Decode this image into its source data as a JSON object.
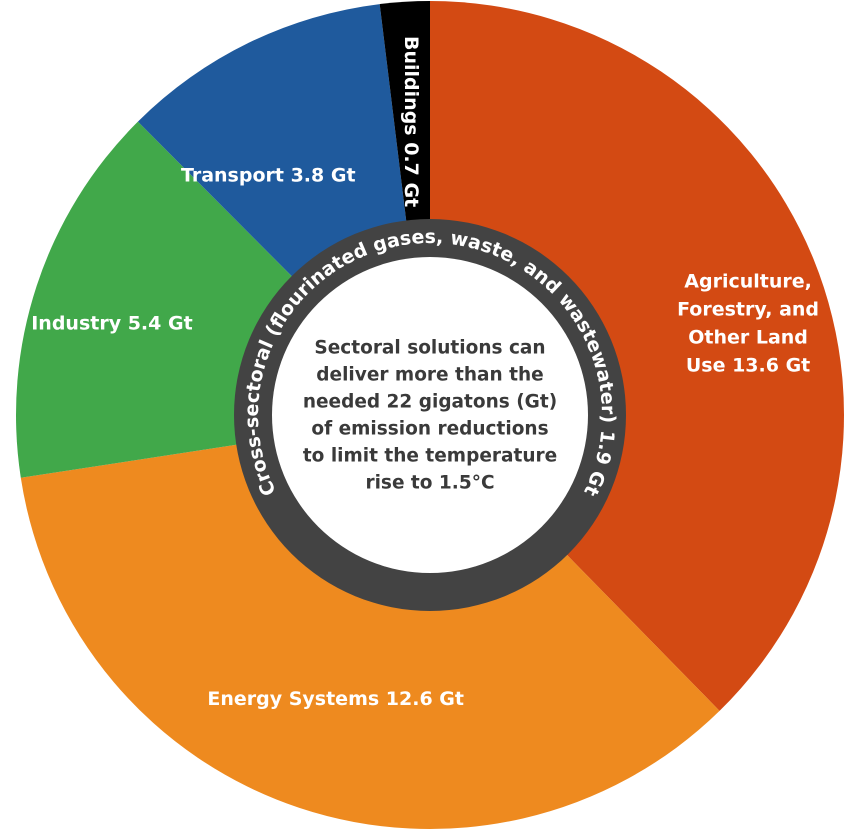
{
  "chart_data": {
    "type": "pie",
    "variant": "donut",
    "unit": "Gt",
    "slices": [
      {
        "name": "Agriculture, Forestry, and Other Land Use",
        "value": 13.6,
        "color": "#d34a13",
        "label_lines": [
          "Agriculture,",
          "Forestry, and",
          "Other Land",
          "Use 13.6 Gt"
        ]
      },
      {
        "name": "Energy Systems",
        "value": 12.6,
        "color": "#ee8a1f",
        "label_lines": [
          "Energy Systems 12.6 Gt"
        ]
      },
      {
        "name": "Industry",
        "value": 5.4,
        "color": "#41a84a",
        "label_lines": [
          "Industry 5.4 Gt"
        ]
      },
      {
        "name": "Transport",
        "value": 3.8,
        "color": "#1f5a9d",
        "label_lines": [
          "Transport 3.8 Gt"
        ]
      },
      {
        "name": "Buildings",
        "value": 0.7,
        "color": "#000000",
        "label_lines": [
          "Buildings 0.7 Gt"
        ]
      }
    ],
    "inner_ring": {
      "label": "Cross-sectoral (flourinated gases, waste, and wastewater) 1.9 Gt",
      "value": 1.9,
      "color": "#434343"
    },
    "center_text_lines": [
      "Sectoral solutions can",
      "deliver more than the",
      "needed 22 gigatons (Gt)",
      "of emission reductions",
      "to limit the temperature",
      "rise to 1.5°C"
    ]
  }
}
